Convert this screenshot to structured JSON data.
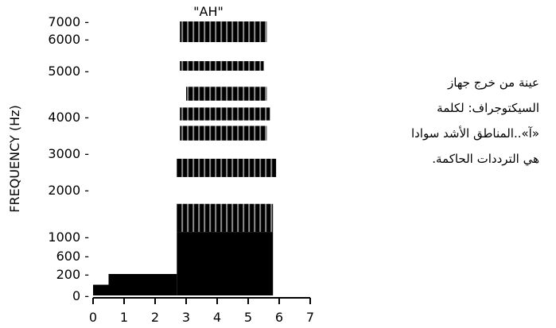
{
  "chart_data": {
    "type": "spectrogram",
    "title": "\"AH\"",
    "ylabel": "FREQUENCY (Hz)",
    "xlabel": "",
    "x_ticks": [
      0,
      1,
      2,
      3,
      4,
      5,
      6,
      7
    ],
    "y_ticks": [
      0,
      200,
      600,
      1000,
      2000,
      3000,
      4000,
      5000,
      6000,
      7000
    ],
    "y_tick_labels": [
      "0",
      "200",
      "600",
      "1000",
      "2000",
      "3000",
      "4000",
      "5000",
      "6000",
      "7000"
    ],
    "bands": [
      {
        "x_start": 0.0,
        "x_end": 2.7,
        "f_low": 0,
        "f_high": 100
      },
      {
        "x_start": 0.5,
        "x_end": 2.7,
        "f_low": 100,
        "f_high": 200
      },
      {
        "x_start": 2.7,
        "x_end": 5.8,
        "f_low": 0,
        "f_high": 1100
      },
      {
        "x_start": 2.7,
        "x_end": 5.8,
        "f_low": 1100,
        "f_high": 1700
      },
      {
        "x_start": 2.7,
        "x_end": 5.9,
        "f_low": 2350,
        "f_high": 2850
      },
      {
        "x_start": 2.8,
        "x_end": 5.6,
        "f_low": 3350,
        "f_high": 3750
      },
      {
        "x_start": 2.8,
        "x_end": 5.7,
        "f_low": 3900,
        "f_high": 4200
      },
      {
        "x_start": 3.0,
        "x_end": 5.6,
        "f_low": 4350,
        "f_high": 4650
      },
      {
        "x_start": 2.8,
        "x_end": 5.5,
        "f_low": 5000,
        "f_high": 5300
      },
      {
        "x_start": 2.8,
        "x_end": 5.6,
        "f_low": 5900,
        "f_high": 7000
      }
    ],
    "color": "#000000"
  },
  "caption": {
    "lines": [
      "عينة من خرج جهاز",
      "السيكتوجراف: لكلمة",
      "«آ»..المناطق الأشد سوادا",
      "هي الترددات الحاكمة."
    ]
  }
}
